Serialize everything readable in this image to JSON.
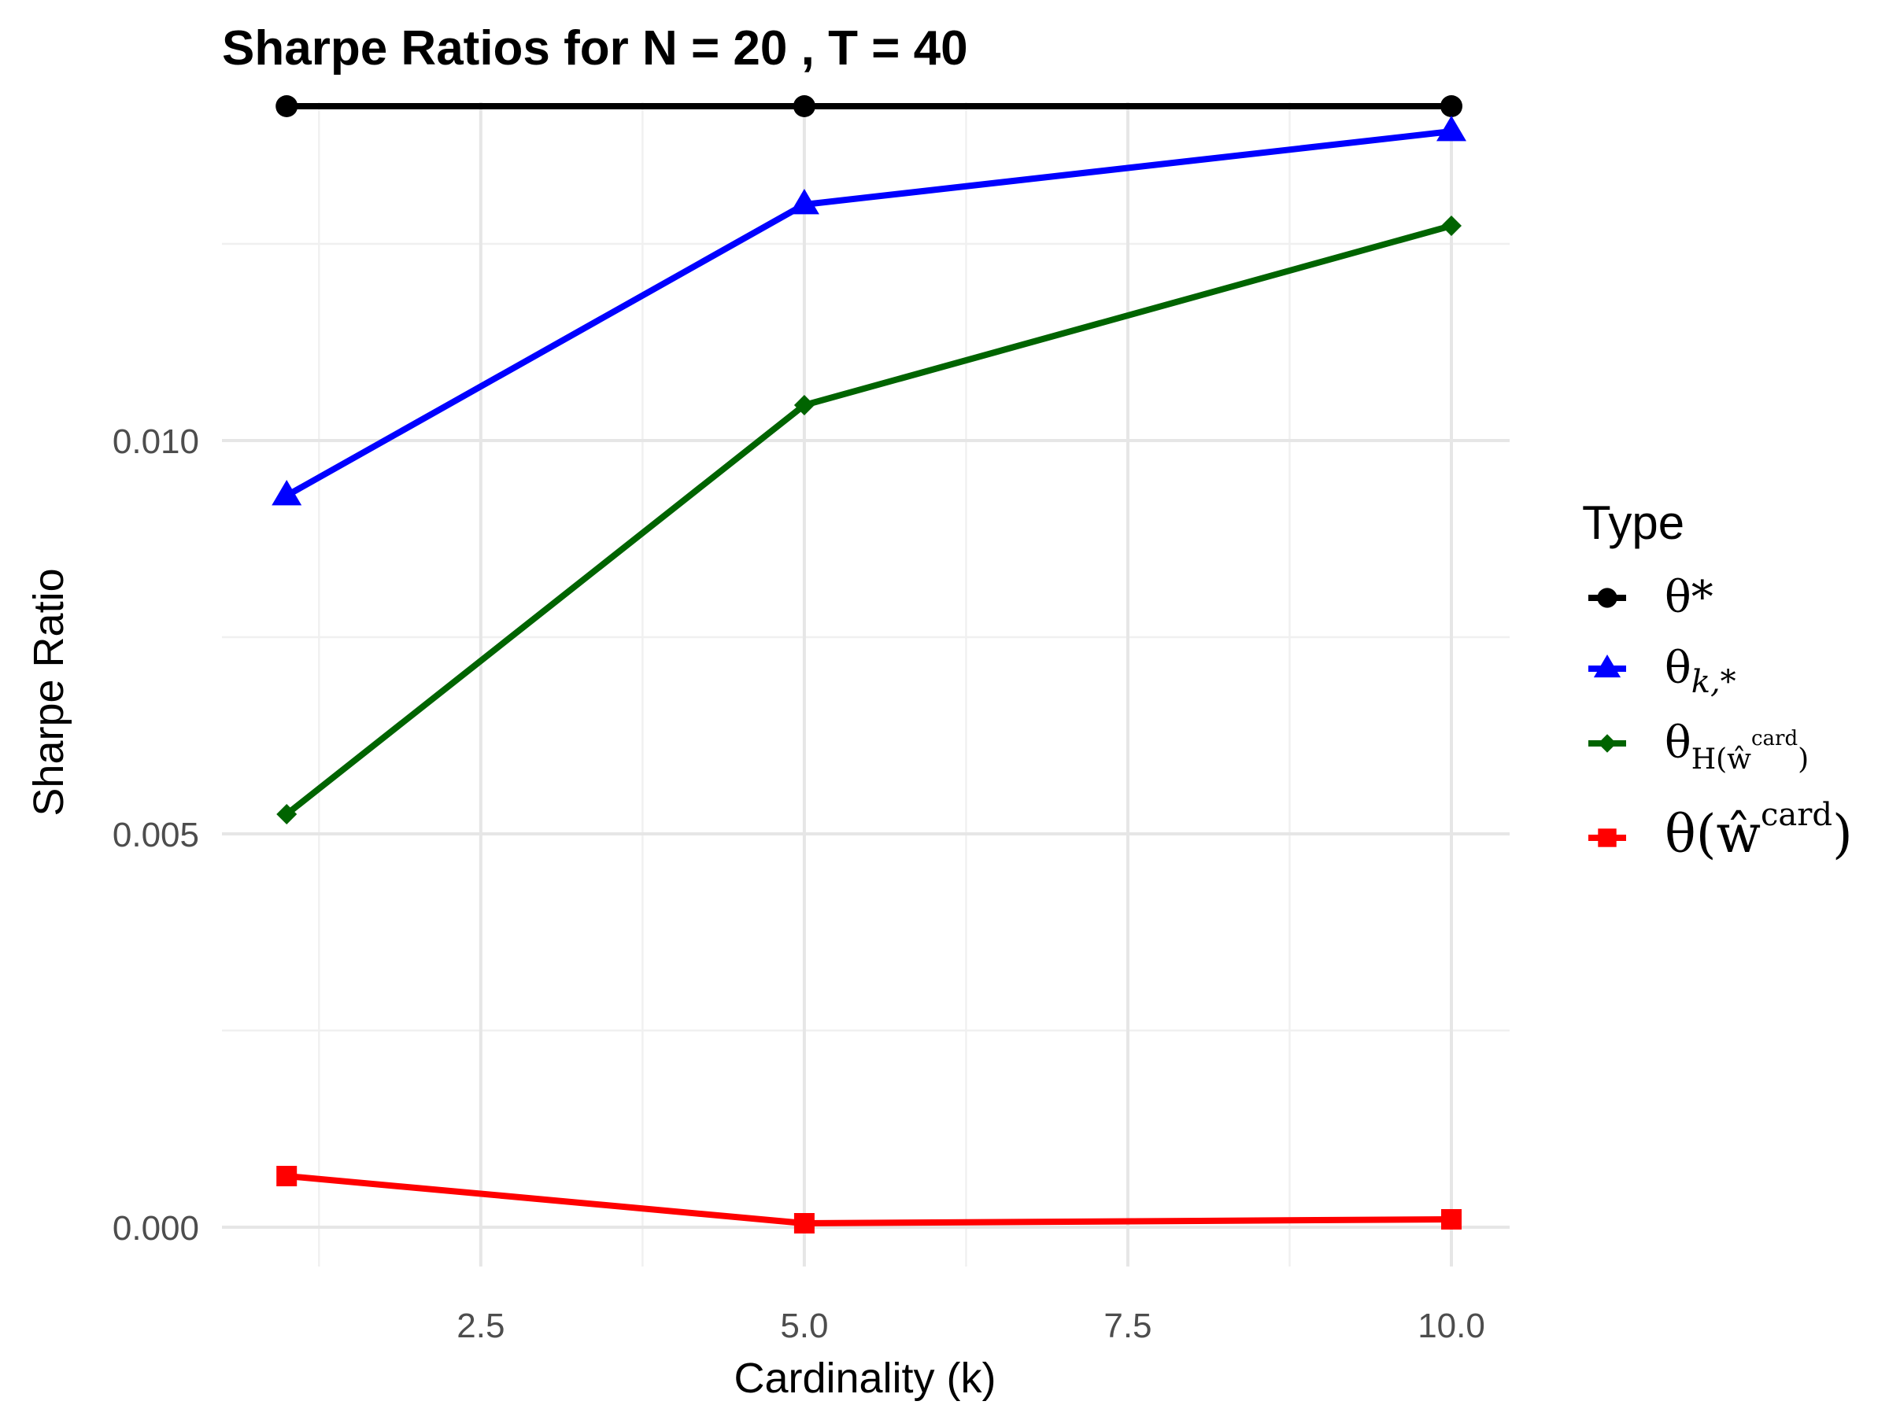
{
  "chart_data": {
    "type": "line",
    "title": "Sharpe Ratios for N = 20 , T = 40",
    "xlabel": "Cardinality (k)",
    "ylabel": "Sharpe Ratio",
    "x": [
      1,
      5,
      10
    ],
    "xlim": [
      0.5,
      10.45
    ],
    "ylim": [
      -0.0005,
      0.0143
    ],
    "x_ticks": [
      2.5,
      5.0,
      7.5,
      10.0
    ],
    "x_tick_labels": [
      "2.5",
      "5.0",
      "7.5",
      "10.0"
    ],
    "y_ticks": [
      0.0,
      0.005,
      0.01
    ],
    "y_tick_labels": [
      "0.000",
      "0.005",
      "0.010"
    ],
    "grid": true,
    "legend": {
      "title": "Type",
      "placement": "right"
    },
    "series": [
      {
        "name": "θ*",
        "values": [
          0.01425,
          0.01425,
          0.01425
        ],
        "color": "#000000",
        "marker": "circle"
      },
      {
        "name": "θk,*",
        "values": [
          0.0093,
          0.013,
          0.01393
        ],
        "color": "#0000ff",
        "marker": "triangle"
      },
      {
        "name": "θH(ŵk card)",
        "values": [
          0.00525,
          0.01045,
          0.01273
        ],
        "color": "#006400",
        "marker": "diamond"
      },
      {
        "name": "θ(ŵk card)",
        "values": [
          0.00065,
          5e-05,
          0.0001
        ],
        "color": "#ff0000",
        "marker": "square"
      }
    ]
  }
}
